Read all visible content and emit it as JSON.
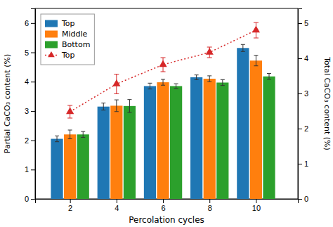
{
  "chart_data": {
    "type": "bar",
    "xlabel": "Percolation cycles",
    "ylabel": "Partial CaCO₃ content (%)",
    "y2label": "Total CaCO₃ content (%)",
    "x": [
      2,
      4,
      6,
      8,
      10
    ],
    "xlim": [
      0.5,
      11.8
    ],
    "xticks": [
      2,
      4,
      6,
      8,
      10
    ],
    "ylim": [
      0,
      6.5
    ],
    "yticks": [
      0,
      1,
      2,
      3,
      4,
      5,
      6
    ],
    "y2lim": [
      0,
      5.42
    ],
    "y2ticks": [
      0,
      1,
      2,
      3,
      4,
      5
    ],
    "grid": false,
    "legend": "upper left",
    "series": [
      {
        "name": "Top",
        "values": [
          2.05,
          3.15,
          3.85,
          4.15,
          5.15
        ],
        "errors": [
          0.1,
          0.12,
          0.1,
          0.08,
          0.12
        ]
      },
      {
        "name": "Middle",
        "values": [
          2.2,
          3.18,
          3.98,
          4.1,
          4.72
        ],
        "errors": [
          0.15,
          0.2,
          0.1,
          0.1,
          0.18
        ]
      },
      {
        "name": "Bottom",
        "values": [
          2.2,
          3.17,
          3.85,
          3.97,
          4.18
        ],
        "errors": [
          0.1,
          0.22,
          0.08,
          0.1,
          0.1
        ]
      },
      {
        "name": "Top",
        "type": "line",
        "axis": "y2",
        "marker": "triangle",
        "line_style": "dotted",
        "values": [
          2.48,
          3.27,
          3.82,
          4.17,
          4.8
        ],
        "errors": [
          0.18,
          0.28,
          0.2,
          0.15,
          0.22
        ]
      }
    ]
  }
}
